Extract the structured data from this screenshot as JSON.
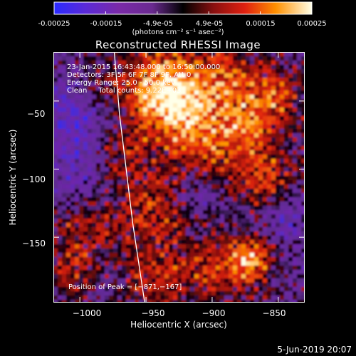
{
  "colorbar": {
    "ticks": [
      "-0.00025",
      "-0.00015",
      "-4.9e-05",
      "4.9e-05",
      "0.00015",
      "0.00025"
    ],
    "units": "(photons cm⁻² s⁻¹ asec⁻²)"
  },
  "chart_data": {
    "type": "heatmap",
    "title": "Reconstructed RHESSI Image",
    "xlabel": "Heliocentric X (arcsec)",
    "ylabel": "Heliocentric Y (arcsec)",
    "xlim": [
      -1020,
      -830
    ],
    "ylim": [
      -198,
      -14
    ],
    "x_ticks": [
      -1000,
      -950,
      -900,
      -850
    ],
    "y_ticks": [
      -50,
      -100,
      -150
    ],
    "x_tick_labels": [
      "−1000",
      "−950",
      "−900",
      "−850"
    ],
    "y_tick_labels": [
      "−50",
      "−100",
      "−150"
    ],
    "color_range": [
      -0.00025,
      0.00025
    ],
    "peak_position": [
      -871,
      -167
    ],
    "limb": [
      [
        -974,
        -14
      ],
      [
        -970,
        -60
      ],
      [
        -965,
        -100
      ],
      [
        -960,
        -140
      ],
      [
        -951,
        -198
      ]
    ]
  },
  "info": {
    "line1": "23-Jan-2015 16:43:48.000 to 16:50:00.000",
    "line2": "Detectors: 3F 5F 6F 7F 8F 9F, Att 0",
    "line3": "Energy Range: 25.0 - 50.0 keV",
    "line4": "Clean     Total counts: 9.22E+03"
  },
  "peak_label": "Position of Peak = [−871,−167]",
  "timestamp": "5-Jun-2019 20:07"
}
